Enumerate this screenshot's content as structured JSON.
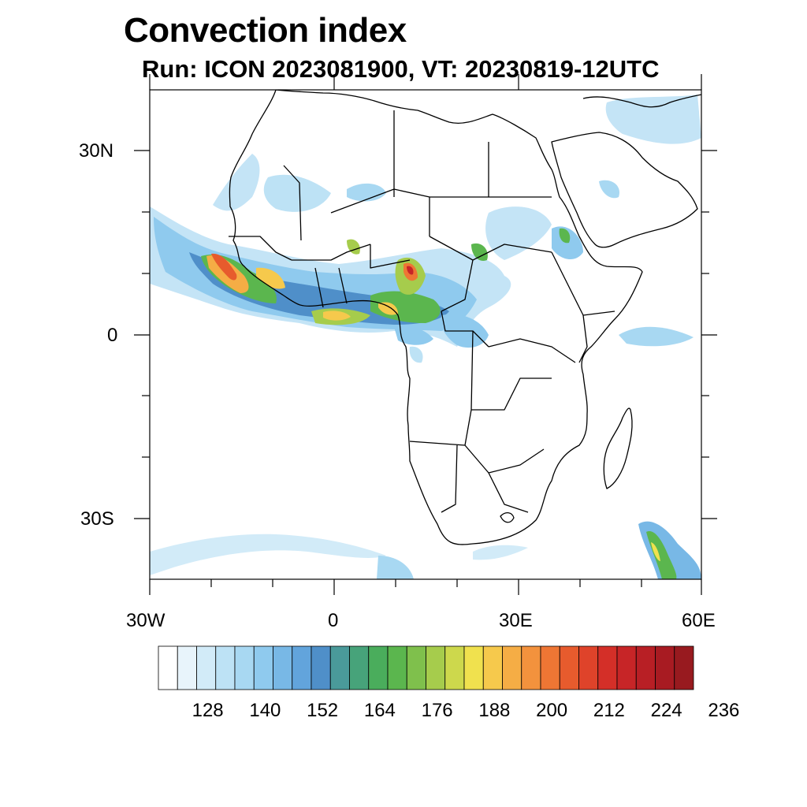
{
  "title": "Convection index",
  "subtitle": "Run: ICON 2023081900,  VT: 20230819-12UTC",
  "axes": {
    "lat_labels": [
      "30N",
      "0",
      "30S"
    ],
    "lon_labels": [
      "30W",
      "0",
      "30E",
      "60E"
    ]
  },
  "colorbar": {
    "labels": [
      "128",
      "140",
      "152",
      "164",
      "176",
      "188",
      "200",
      "212",
      "224",
      "236"
    ],
    "colors": [
      "#ffffff",
      "#e8f4fb",
      "#d2ebf8",
      "#bde2f5",
      "#a8d8f2",
      "#8fcaee",
      "#78b8e6",
      "#62a4dc",
      "#4f8fc9",
      "#4a9a9a",
      "#47a37a",
      "#4aad5c",
      "#5bb64e",
      "#7fc04c",
      "#a6cc4c",
      "#cdd84c",
      "#f0e14e",
      "#f6c94c",
      "#f5ad45",
      "#f3923d",
      "#ee7634",
      "#e75b2d",
      "#df432a",
      "#d42f28",
      "#c72527",
      "#b81f25",
      "#a81b22",
      "#981a1f"
    ]
  }
}
